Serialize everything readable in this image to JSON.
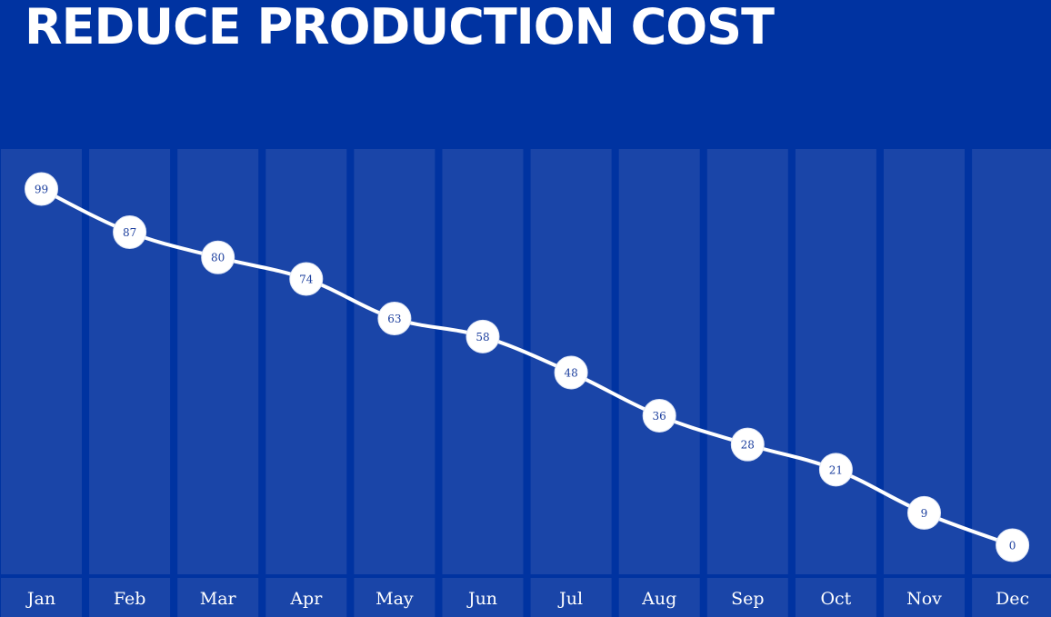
{
  "title": "REDUCE PRODUCTION COST",
  "colors": {
    "background": "#0033a1",
    "column": "#1a45a8",
    "line": "#ffffff",
    "marker_fill": "#ffffff",
    "marker_text": "#1c3f9e"
  },
  "chart_data": {
    "type": "line",
    "title": "REDUCE PRODUCTION COST",
    "categories": [
      "Jan",
      "Feb",
      "Mar",
      "Apr",
      "May",
      "Jun",
      "Jul",
      "Aug",
      "Sep",
      "Oct",
      "Nov",
      "Dec"
    ],
    "series": [
      {
        "values": [
          99,
          87,
          80,
          74,
          63,
          58,
          48,
          36,
          28,
          21,
          9,
          0
        ]
      }
    ],
    "ylim": [
      0,
      99
    ],
    "xlabel": "",
    "ylabel": "",
    "data_labels": true,
    "grid": false,
    "legend": "none",
    "smooth": true
  }
}
